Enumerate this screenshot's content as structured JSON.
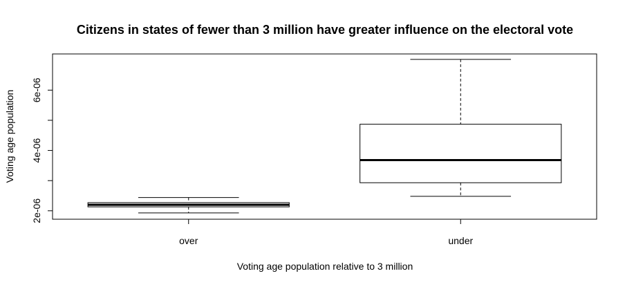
{
  "chart_data": {
    "type": "box",
    "title": "Citizens in states of fewer than 3 million have greater influence on the electoral vote",
    "xlabel": "Voting age population relative to 3 million",
    "ylabel": "Voting age population",
    "categories": [
      "over",
      "under"
    ],
    "y_ticks": [
      2e-06,
      3e-06,
      4e-06,
      5e-06,
      6e-06
    ],
    "y_tick_labels": [
      "2e-06",
      "",
      "4e-06",
      "",
      "6e-06"
    ],
    "ylim": [
      1.72e-06,
      7.2e-06
    ],
    "boxes": [
      {
        "category": "over",
        "whisker_low": 1.93e-06,
        "q1": 2.13e-06,
        "median": 2.2e-06,
        "q3": 2.27e-06,
        "whisker_high": 2.44e-06
      },
      {
        "category": "under",
        "whisker_low": 2.48e-06,
        "q1": 2.93e-06,
        "median": 3.68e-06,
        "q3": 4.87e-06,
        "whisker_high": 7.02e-06
      }
    ]
  }
}
